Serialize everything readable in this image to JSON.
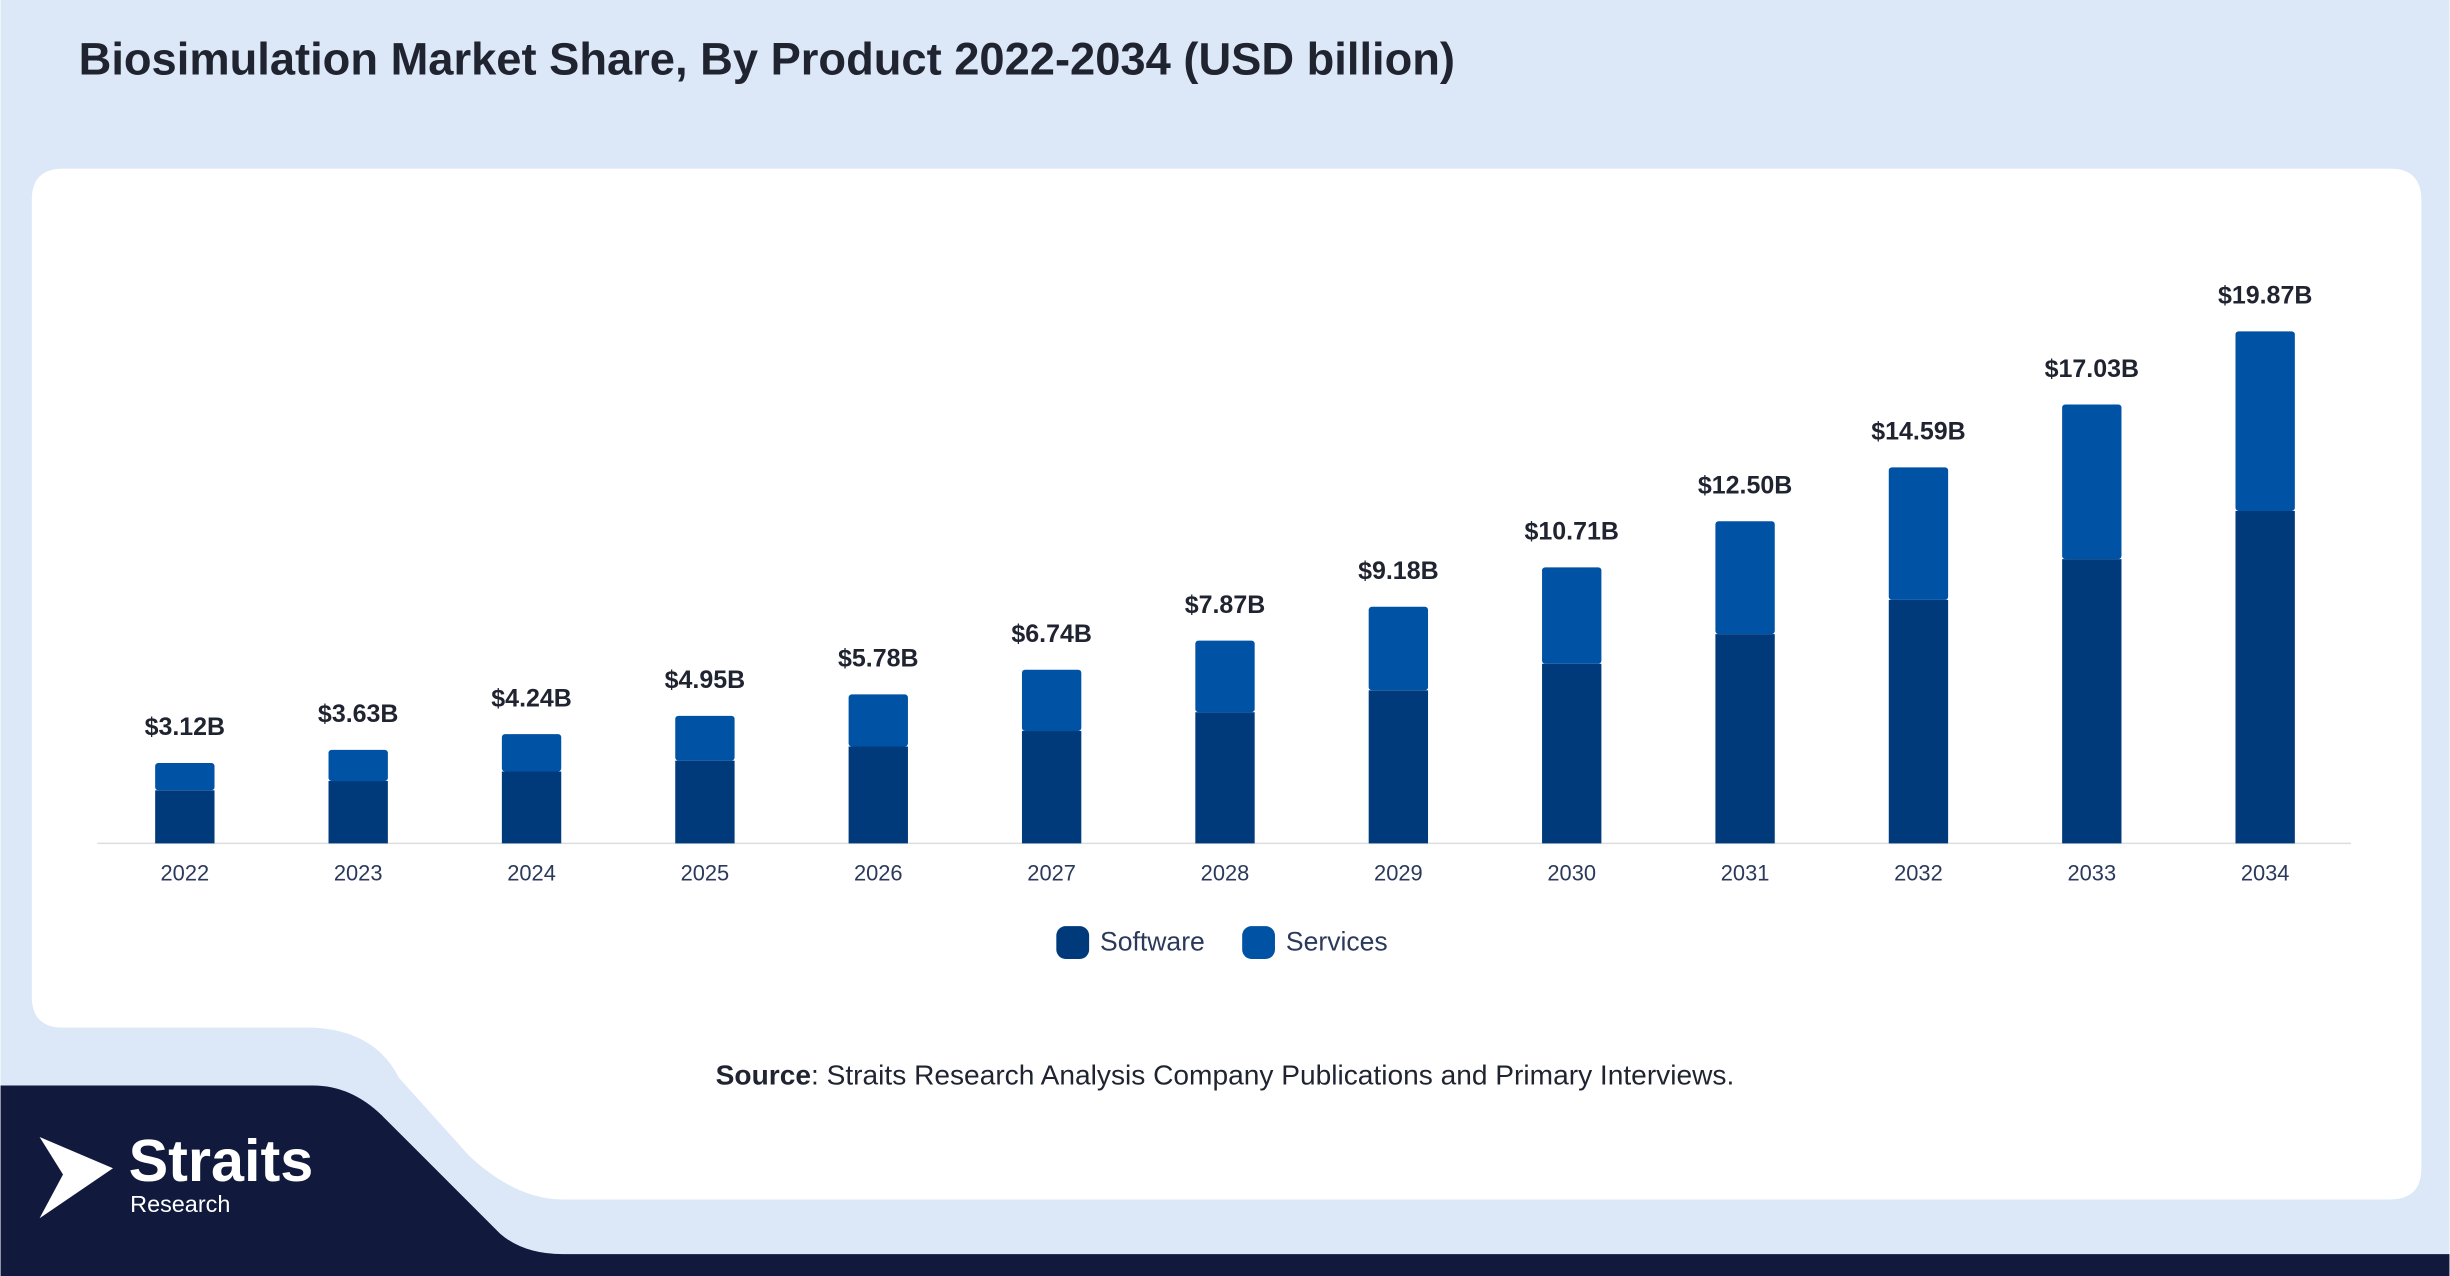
{
  "chart_data": {
    "type": "stacked_bar",
    "title": "Biosimulation Market Share, By Product 2022-2034 (USD billion)",
    "categories": [
      "2022",
      "2023",
      "2024",
      "2025",
      "2026",
      "2027",
      "2028",
      "2029",
      "2030",
      "2031",
      "2032",
      "2033",
      "2034"
    ],
    "series": [
      {
        "name": "Software",
        "color": "#003a7a",
        "values": [
          2.06,
          2.42,
          2.79,
          3.21,
          3.76,
          4.36,
          5.09,
          5.94,
          6.97,
          8.12,
          9.45,
          11.03,
          12.9
        ]
      },
      {
        "name": "Services",
        "color": "#0052a5",
        "values": [
          1.06,
          1.21,
          1.45,
          1.74,
          2.02,
          2.38,
          2.78,
          3.24,
          3.74,
          4.38,
          5.14,
          6.0,
          6.97
        ]
      }
    ],
    "totals": {
      "values": [
        3.12,
        3.63,
        4.24,
        4.95,
        5.78,
        6.74,
        7.87,
        9.18,
        10.71,
        12.5,
        14.59,
        17.03,
        19.87
      ],
      "value_labels": [
        "$3.12B",
        "$3.63B",
        "$4.24B",
        "$4.95B",
        "$5.78B",
        "$6.74B",
        "$7.87B",
        "$9.18B",
        "$10.71B",
        "$12.50B",
        "$14.59B",
        "$17.03B",
        "$19.87B"
      ]
    },
    "ylim": [
      0,
      22
    ],
    "legend": "bottom"
  },
  "source": {
    "label": "Source",
    "text": ": Straits Research Analysis Company Publications and Primary Interviews."
  },
  "logo": {
    "name": "Straits",
    "sub": "Research"
  }
}
